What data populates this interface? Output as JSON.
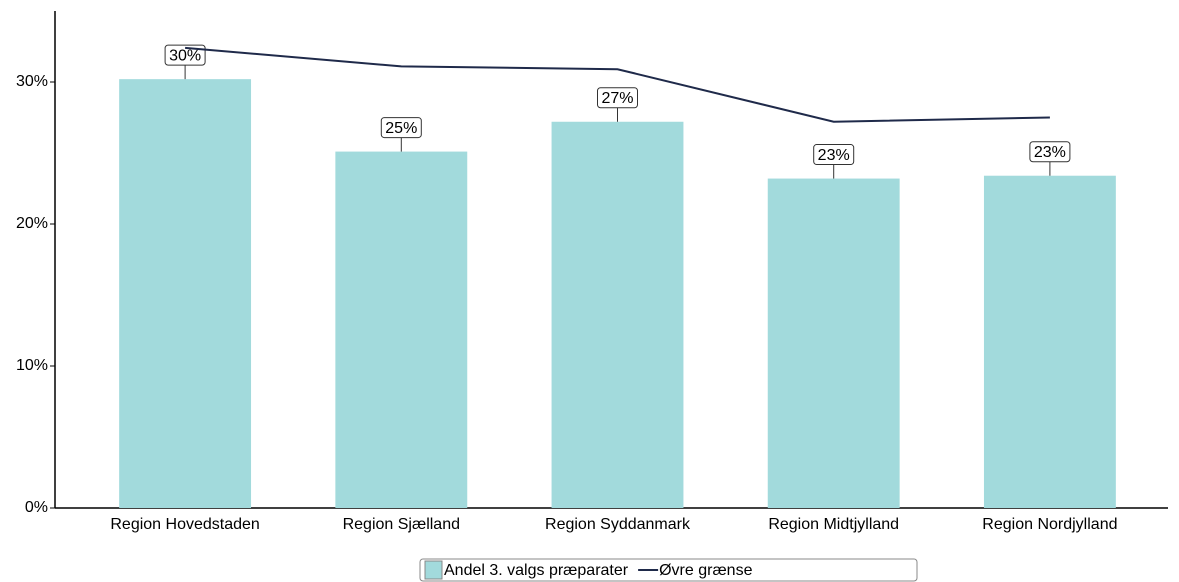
{
  "chart_data": {
    "type": "bar",
    "categories": [
      "Region Hovedstaden",
      "Region Sjælland",
      "Region Syddanmark",
      "Region Midtjylland",
      "Region Nordjylland"
    ],
    "series": [
      {
        "name": "Andel 3. valgs præparater",
        "type": "bar",
        "color": "#a2dadc",
        "values": [
          30.2,
          25.1,
          27.2,
          23.2,
          23.4
        ],
        "value_labels": [
          "30%",
          "25%",
          "27%",
          "23%",
          "23%"
        ]
      },
      {
        "name": "Øvre grænse",
        "type": "line",
        "color": "#1f2a4a",
        "values": [
          32.4,
          31.1,
          30.9,
          27.2,
          27.5
        ]
      }
    ],
    "ylim": [
      0,
      35
    ],
    "yticks": [
      {
        "value": 0,
        "label": "0%"
      },
      {
        "value": 10,
        "label": "10%"
      },
      {
        "value": 20,
        "label": "20%"
      },
      {
        "value": 30,
        "label": "30%"
      }
    ],
    "grid": false,
    "legend": "bottom"
  }
}
